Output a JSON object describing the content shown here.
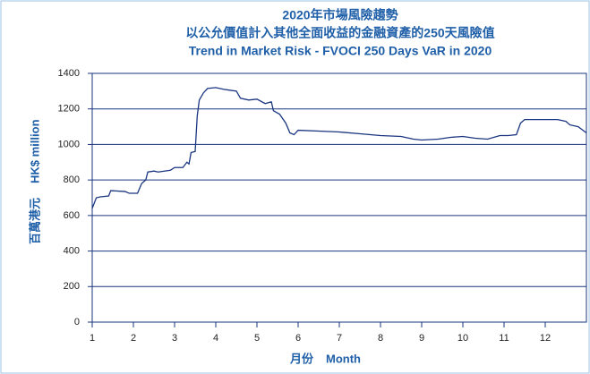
{
  "chart_data": {
    "type": "line",
    "title": [
      "2020年市場風險趨勢",
      "以公允價值計入其他全面收益的金融資產的250天風險值",
      "Trend in Market Risk - FVOCI 250 Days VaR in 2020"
    ],
    "x_label": [
      "月份",
      "Month"
    ],
    "y_label": [
      "百萬港元",
      "HK$ million"
    ],
    "xlim": [
      1,
      13
    ],
    "xticks": [
      1,
      2,
      3,
      4,
      5,
      6,
      7,
      8,
      9,
      10,
      11,
      12
    ],
    "ylim": [
      0,
      1400
    ],
    "yticks": [
      0,
      200,
      400,
      600,
      800,
      1000,
      1200,
      1400
    ],
    "grid": true,
    "series": [
      {
        "color": "#1a3580",
        "x": [
          1.0,
          1.1,
          1.2,
          1.4,
          1.45,
          1.8,
          1.9,
          2.1,
          2.2,
          2.3,
          2.35,
          2.5,
          2.6,
          2.9,
          3.0,
          3.2,
          3.3,
          3.35,
          3.4,
          3.5,
          3.55,
          3.6,
          3.7,
          3.8,
          4.0,
          4.2,
          4.5,
          4.6,
          4.8,
          5.0,
          5.2,
          5.35,
          5.4,
          5.55,
          5.7,
          5.8,
          5.9,
          6.0,
          6.5,
          7.0,
          7.5,
          8.0,
          8.5,
          8.8,
          9.0,
          9.4,
          9.7,
          10.0,
          10.3,
          10.6,
          10.9,
          11.1,
          11.3,
          11.4,
          11.5,
          12.0,
          12.3,
          12.5,
          12.6,
          12.8,
          13.0
        ],
        "values": [
          640,
          700,
          705,
          710,
          740,
          735,
          725,
          725,
          780,
          800,
          845,
          850,
          845,
          855,
          870,
          870,
          900,
          890,
          955,
          960,
          1160,
          1250,
          1290,
          1315,
          1320,
          1310,
          1300,
          1260,
          1250,
          1255,
          1230,
          1240,
          1190,
          1170,
          1120,
          1065,
          1055,
          1080,
          1075,
          1070,
          1060,
          1050,
          1045,
          1030,
          1025,
          1030,
          1040,
          1045,
          1035,
          1030,
          1050,
          1050,
          1055,
          1120,
          1140,
          1140,
          1140,
          1130,
          1110,
          1100,
          1065
        ]
      }
    ]
  }
}
